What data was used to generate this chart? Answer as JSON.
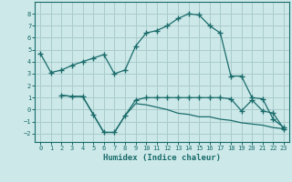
{
  "xlabel": "Humidex (Indice chaleur)",
  "bg_color": "#cce8e8",
  "grid_color": "#aacccc",
  "line_color": "#1a6b6b",
  "xlim": [
    -0.5,
    23.5
  ],
  "ylim": [
    -2.7,
    9.0
  ],
  "xticks": [
    0,
    1,
    2,
    3,
    4,
    5,
    6,
    7,
    8,
    9,
    10,
    11,
    12,
    13,
    14,
    15,
    16,
    17,
    18,
    19,
    20,
    21,
    22,
    23
  ],
  "yticks": [
    -2,
    -1,
    0,
    1,
    2,
    3,
    4,
    5,
    6,
    7,
    8
  ],
  "line1_x": [
    0,
    1,
    2,
    3,
    4,
    5,
    6,
    7,
    8,
    9,
    10,
    11,
    12,
    13,
    14,
    15,
    16,
    17,
    18,
    19,
    20,
    21,
    22,
    23
  ],
  "line1_y": [
    4.7,
    3.1,
    3.3,
    3.7,
    4.0,
    4.3,
    4.6,
    3.0,
    3.3,
    5.3,
    6.4,
    6.6,
    7.0,
    7.6,
    8.0,
    7.9,
    7.0,
    6.4,
    2.8,
    2.8,
    1.0,
    0.9,
    -0.8,
    -1.5
  ],
  "line2_x": [
    2,
    3,
    4,
    5,
    6,
    7,
    8,
    9,
    10,
    11,
    12,
    13,
    14,
    15,
    16,
    17,
    18,
    19,
    20,
    21,
    22,
    23
  ],
  "line2_y": [
    1.2,
    1.1,
    1.1,
    -0.4,
    -1.9,
    -1.9,
    -0.5,
    0.8,
    1.0,
    1.0,
    1.0,
    1.0,
    1.0,
    1.0,
    1.0,
    1.0,
    0.9,
    -0.1,
    0.8,
    -0.1,
    -0.3,
    -1.6
  ],
  "line3_x": [
    2,
    3,
    4,
    5,
    6,
    7,
    8,
    9,
    10,
    11,
    12,
    13,
    14,
    15,
    16,
    17,
    18,
    19,
    20,
    21,
    22,
    23
  ],
  "line3_y": [
    1.2,
    1.1,
    1.1,
    -0.4,
    -1.9,
    -1.9,
    -0.5,
    0.5,
    0.4,
    0.2,
    0.0,
    -0.3,
    -0.4,
    -0.6,
    -0.6,
    -0.8,
    -0.9,
    -1.1,
    -1.2,
    -1.3,
    -1.5,
    -1.6
  ]
}
